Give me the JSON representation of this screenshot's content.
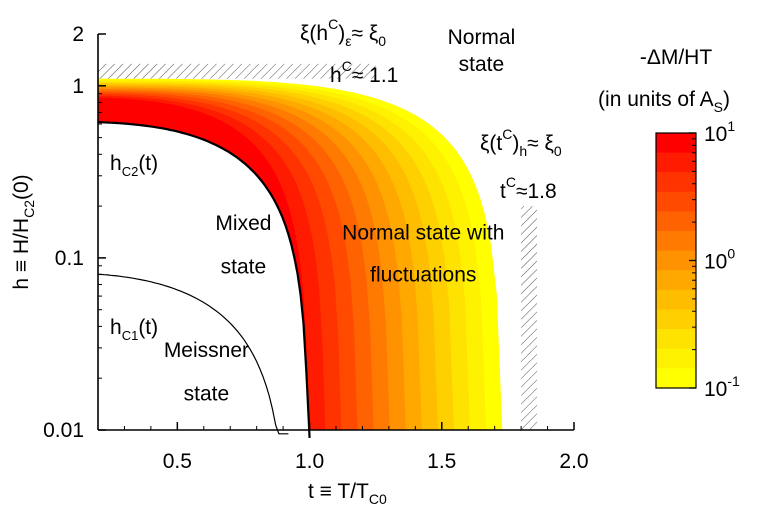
{
  "chart_data": {
    "type": "heatmap",
    "title": "",
    "xlabel": {
      "main": "t ≡ T/T",
      "sub": "C0"
    },
    "ylabel": {
      "main": "h ≡ H/H",
      "sub": "C2",
      "tail": "(0)"
    },
    "x_scale": "linear",
    "y_scale": "log",
    "xlim": [
      0.2,
      2.0
    ],
    "ylim": [
      0.01,
      2
    ],
    "x_ticks": [
      0.5,
      1.0,
      1.5,
      2.0
    ],
    "x_tick_labels": [
      "0.5",
      "1.0",
      "1.5",
      "2.0"
    ],
    "y_ticks": [
      0.01,
      0.1,
      1,
      2
    ],
    "y_tick_labels": [
      "0.01",
      "0.1",
      "1",
      "2"
    ],
    "grid": false,
    "curves": {
      "hc2_tc": 1.0,
      "hc1_tc": 0.92,
      "hc1_h0": 0.1,
      "fluct_limit_h": 1.1,
      "fluct_limit_t": 1.8
    },
    "region_labels": [
      {
        "text": "Normal",
        "t": 1.65,
        "h": 1.75
      },
      {
        "text": "state",
        "t": 1.65,
        "h": 1.22
      },
      {
        "text": "Mixed",
        "t": 0.75,
        "h": 0.145
      },
      {
        "text": "state",
        "t": 0.75,
        "h": 0.081
      },
      {
        "text": "Normal state with",
        "t": 1.43,
        "h": 0.128
      },
      {
        "text": "fluctuations",
        "t": 1.43,
        "h": 0.073
      },
      {
        "text": "Meissner",
        "t": 0.61,
        "h": 0.0265
      },
      {
        "text": "state",
        "t": 0.61,
        "h": 0.0148
      }
    ],
    "annotations": {
      "hc2": {
        "main": "h",
        "sub": "C2",
        "tail": "(t)",
        "t": 0.22,
        "h": 0.26
      },
      "hc1": {
        "main": "h",
        "sub": "C1",
        "tail": "(t)",
        "t": 0.22,
        "h": 0.027
      },
      "xi_h": {
        "main": "ξ(h",
        "sup": "C",
        "sub": "ε",
        "tail": "≈ ξ",
        "sub2": "0"
      },
      "h_limit": {
        "main": "h",
        "sup": "C",
        "tail": "≈ 1.1"
      },
      "xi_t": {
        "main": "ξ(t",
        "sup": "C",
        "sub": "h",
        "tail": "≈ ξ",
        "sub2": "0"
      },
      "t_limit": {
        "main": "t",
        "sup": "C",
        "tail": "≈1.8"
      }
    },
    "colorbar": {
      "title_line1": "-ΔM/HT",
      "title_line2_main": "(in units of A",
      "title_line2_sub": "S",
      "title_line2_tail": ")",
      "scale": "log",
      "range": [
        0.1,
        10
      ],
      "ticks": [
        {
          "main": "10",
          "exp": "1",
          "value": 10
        },
        {
          "main": "10",
          "exp": "0",
          "value": 1
        },
        {
          "main": "10",
          "exp": "-1",
          "value": 0.1
        }
      ],
      "colors": [
        "#ff0000",
        "#ff1b00",
        "#ff3300",
        "#ff4a00",
        "#ff6200",
        "#ff7a00",
        "#ff9200",
        "#ffa800",
        "#ffbd00",
        "#ffd000",
        "#ffe300",
        "#fff200",
        "#ffff00"
      ]
    }
  }
}
